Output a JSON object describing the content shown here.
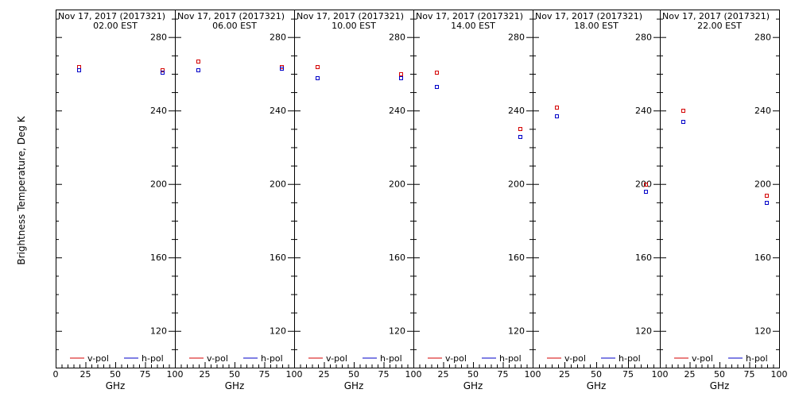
{
  "chart_data": {
    "type": "scatter",
    "ylabel": "Brightness Temperature, Deg K",
    "xlabel": "GHz",
    "xlim": [
      0,
      100
    ],
    "ylim": [
      100,
      295
    ],
    "xticks": [
      0,
      25,
      50,
      75,
      100
    ],
    "yticks": [
      120,
      160,
      200,
      240,
      280
    ],
    "series_names": [
      "v-pol",
      "h-pol"
    ],
    "colors": {
      "v-pol": "#d40000",
      "h-pol": "#0000c8"
    },
    "legend_placement": "bottom",
    "grid": false,
    "panels": [
      {
        "title": "Nov 17, 2017 (2017321)",
        "subtitle": "02.00 EST",
        "series": [
          {
            "name": "v-pol",
            "x": [
              19,
              89
            ],
            "y": [
              264,
              262
            ]
          },
          {
            "name": "h-pol",
            "x": [
              19,
              89
            ],
            "y": [
              262,
              261
            ]
          }
        ]
      },
      {
        "title": "Nov 17, 2017 (2017321)",
        "subtitle": "06.00 EST",
        "series": [
          {
            "name": "v-pol",
            "x": [
              19,
              89
            ],
            "y": [
              267,
              264
            ]
          },
          {
            "name": "h-pol",
            "x": [
              19,
              89
            ],
            "y": [
              262,
              263
            ]
          }
        ]
      },
      {
        "title": "Nov 17, 2017 (2017321)",
        "subtitle": "10.00 EST",
        "series": [
          {
            "name": "v-pol",
            "x": [
              19,
              89
            ],
            "y": [
              264,
              260
            ]
          },
          {
            "name": "h-pol",
            "x": [
              19,
              89
            ],
            "y": [
              258,
              258
            ]
          }
        ]
      },
      {
        "title": "Nov 17, 2017 (2017321)",
        "subtitle": "14.00 EST",
        "series": [
          {
            "name": "v-pol",
            "x": [
              19,
              89
            ],
            "y": [
              261,
              230
            ]
          },
          {
            "name": "h-pol",
            "x": [
              19,
              89
            ],
            "y": [
              253,
              226
            ]
          }
        ]
      },
      {
        "title": "Nov 17, 2017 (2017321)",
        "subtitle": "18.00 EST",
        "series": [
          {
            "name": "v-pol",
            "x": [
              19,
              89
            ],
            "y": [
              242,
              200
            ]
          },
          {
            "name": "h-pol",
            "x": [
              19,
              89
            ],
            "y": [
              237,
              196
            ]
          }
        ]
      },
      {
        "title": "Nov 17, 2017 (2017321)",
        "subtitle": "22.00 EST",
        "series": [
          {
            "name": "v-pol",
            "x": [
              19,
              89
            ],
            "y": [
              240,
              194
            ]
          },
          {
            "name": "h-pol",
            "x": [
              19,
              89
            ],
            "y": [
              234,
              190
            ]
          }
        ]
      }
    ]
  }
}
